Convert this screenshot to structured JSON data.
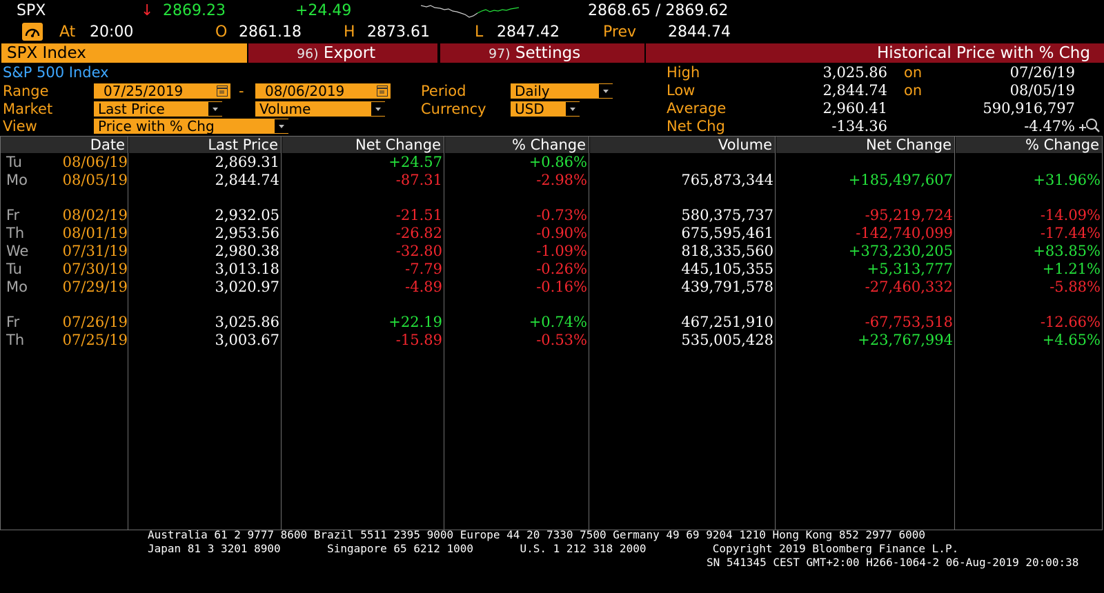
{
  "ticker": {
    "symbol": "SPX",
    "arrow": "↓",
    "last": "2869.23",
    "change": "+24.49",
    "bid_ask": "2868.65 / 2869.62",
    "at_label": "At",
    "time": "20:00",
    "open_label": "O",
    "open": "2861.18",
    "high_label": "H",
    "high": "2873.61",
    "low_label": "L",
    "low": "2847.42",
    "prev_label": "Prev",
    "prev": "2844.74"
  },
  "titlebar": {
    "security": "SPX Index",
    "export_num": "96)",
    "export_label": "Export",
    "settings_num": "97)",
    "settings_label": "Settings",
    "screen_title": "Historical Price with % Chg"
  },
  "form": {
    "security_name": "S&P 500 Index",
    "range_label": "Range",
    "range_start": "07/25/2019",
    "range_sep": "-",
    "range_end": "08/06/2019",
    "period_label": "Period",
    "period_value": "Daily",
    "market_label": "Market",
    "market_value": "Last Price",
    "market_value2": "Volume",
    "currency_label": "Currency",
    "currency_value": "USD",
    "view_label": "View",
    "view_value": "Price with % Chg"
  },
  "stats": {
    "high_label": "High",
    "high_value": "3,025.86",
    "high_on": "on",
    "high_date": "07/26/19",
    "low_label": "Low",
    "low_value": "2,844.74",
    "low_on": "on",
    "low_date": "08/05/19",
    "avg_label": "Average",
    "avg_value": "2,960.41",
    "avg_volume": "590,916,797",
    "netchg_label": "Net Chg",
    "netchg_value": "-134.36",
    "netchg_pct": "-4.47%"
  },
  "table": {
    "headers": [
      "Date",
      "Last Price",
      "Net Change",
      "% Change",
      "Volume",
      "Net Change",
      "% Change"
    ],
    "rows": [
      {
        "dow": "Tu",
        "date": "08/06/19",
        "last": "2,869.31",
        "chg": "+24.57",
        "pct": "+0.86%",
        "vol": "",
        "vchg": "",
        "vpct": ""
      },
      {
        "dow": "Mo",
        "date": "08/05/19",
        "last": "2,844.74",
        "chg": "-87.31",
        "pct": "-2.98%",
        "vol": "765,873,344",
        "vchg": "+185,497,607",
        "vpct": "+31.96%"
      },
      {
        "dow": "Fr",
        "date": "08/02/19",
        "last": "2,932.05",
        "chg": "-21.51",
        "pct": "-0.73%",
        "vol": "580,375,737",
        "vchg": "-95,219,724",
        "vpct": "-14.09%"
      },
      {
        "dow": "Th",
        "date": "08/01/19",
        "last": "2,953.56",
        "chg": "-26.82",
        "pct": "-0.90%",
        "vol": "675,595,461",
        "vchg": "-142,740,099",
        "vpct": "-17.44%"
      },
      {
        "dow": "We",
        "date": "07/31/19",
        "last": "2,980.38",
        "chg": "-32.80",
        "pct": "-1.09%",
        "vol": "818,335,560",
        "vchg": "+373,230,205",
        "vpct": "+83.85%"
      },
      {
        "dow": "Tu",
        "date": "07/30/19",
        "last": "3,013.18",
        "chg": "-7.79",
        "pct": "-0.26%",
        "vol": "445,105,355",
        "vchg": "+5,313,777",
        "vpct": "+1.21%"
      },
      {
        "dow": "Mo",
        "date": "07/29/19",
        "last": "3,020.97",
        "chg": "-4.89",
        "pct": "-0.16%",
        "vol": "439,791,578",
        "vchg": "-27,460,332",
        "vpct": "-5.88%"
      },
      {
        "dow": "Fr",
        "date": "07/26/19",
        "last": "3,025.86",
        "chg": "+22.19",
        "pct": "+0.74%",
        "vol": "467,251,910",
        "vchg": "-67,753,518",
        "vpct": "-12.66%"
      },
      {
        "dow": "Th",
        "date": "07/25/19",
        "last": "3,003.67",
        "chg": "-15.89",
        "pct": "-0.53%",
        "vol": "535,005,428",
        "vchg": "+23,767,994",
        "vpct": "+4.65%"
      }
    ]
  },
  "footer": {
    "line1": "Australia 61 2 9777 8600 Brazil 5511 2395 9000 Europe 44 20 7330 7500 Germany 49 69 9204 1210 Hong Kong 852 2977 6000",
    "line2": "Japan 81 3 3201 8900       Singapore 65 6212 1000       U.S. 1 212 318 2000          Copyright 2019 Bloomberg Finance L.P.",
    "line3": "SN 541345 CEST GMT+2:00 H266-1064-2 06-Aug-2019 20:00:38"
  },
  "colors": {
    "orange": "#f7a11a",
    "green": "#25e33c",
    "red": "#f2262e",
    "tab_red": "#8a0e1b",
    "header_gray": "#2b2b2b"
  }
}
